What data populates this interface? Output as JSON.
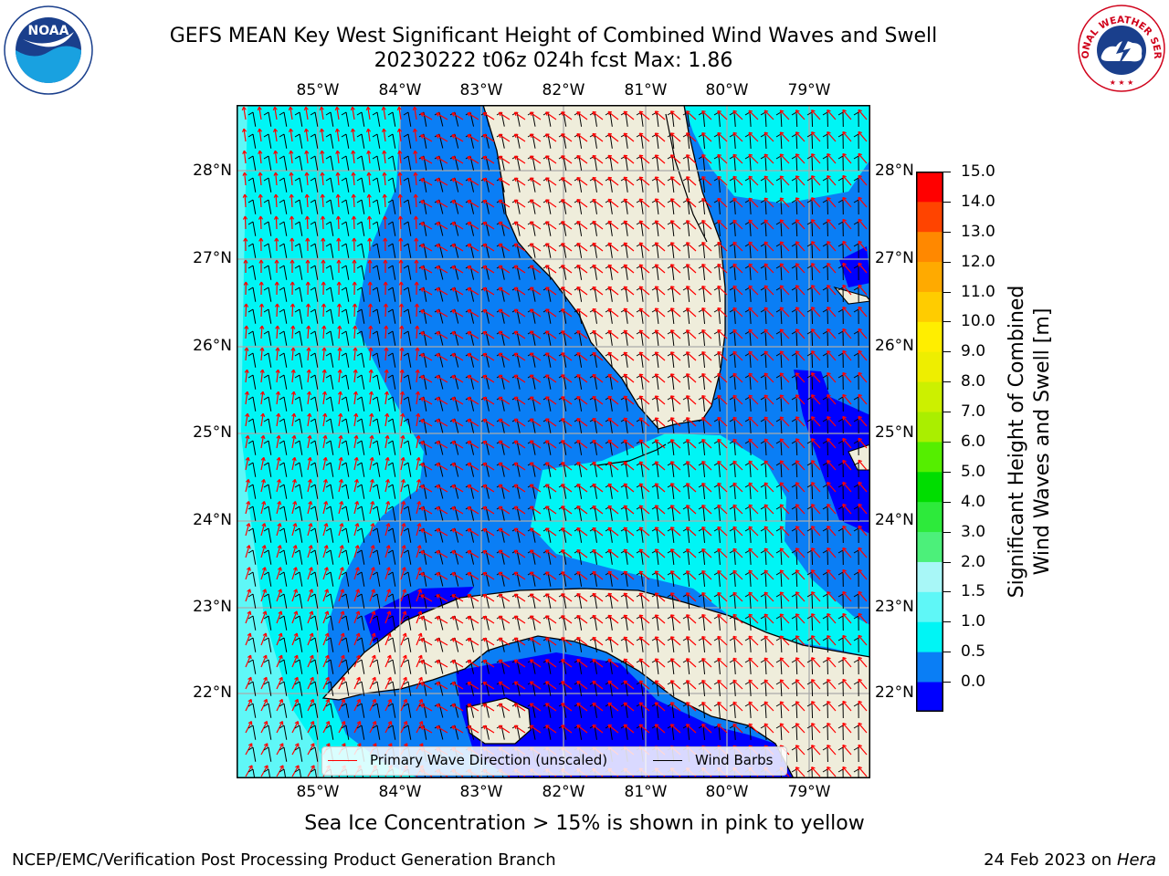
{
  "header": {
    "title_line1": "GEFS MEAN Key West Significant Height of Combined Wind Waves and Swell",
    "title_line2": "20230222 t06z 024h fcst   Max: 1.86"
  },
  "logos": {
    "noaa": "NOAA",
    "nws_text": "NATIONAL WEATHER SERVICE"
  },
  "map": {
    "lon_labels": [
      "85°W",
      "84°W",
      "83°W",
      "82°W",
      "81°W",
      "80°W",
      "79°W"
    ],
    "lat_labels": [
      "28°N",
      "27°N",
      "26°N",
      "25°N",
      "24°N",
      "23°N",
      "22°N"
    ],
    "colors": {
      "land": "#efeddb",
      "ocean_low": "#0000ff",
      "ocean_mid": "#0a7ef5",
      "ocean_high": "#00f5f5",
      "ocean_higher": "#5ff7f7",
      "grid": "#aaaaaa",
      "wave_arrow": "#ff0000",
      "wind_barb": "#000000"
    }
  },
  "legend": {
    "wave_label": "Primary Wave Direction (unscaled)",
    "wind_label": "Wind Barbs"
  },
  "colorbar": {
    "ticks": [
      "15.0",
      "14.0",
      "13.0",
      "12.0",
      "11.0",
      "10.0",
      "9.0",
      "8.0",
      "7.0",
      "6.0",
      "5.0",
      "4.0",
      "3.0",
      "2.0",
      "1.5",
      "1.0",
      "0.5",
      "0.0"
    ],
    "colors": [
      "#0000ff",
      "#0a7ef5",
      "#00f5f5",
      "#5ff7f7",
      "#a8f7f7",
      "#4cf07a",
      "#2dea3b",
      "#00dd00",
      "#55ee00",
      "#aaee00",
      "#ccf000",
      "#eeee00",
      "#ffee00",
      "#ffcc00",
      "#ffaa00",
      "#ff8800",
      "#ff4400",
      "#ff0000"
    ],
    "label_line1": "Significant Height of Combined",
    "label_line2": "Wind Waves and Swell [m]"
  },
  "notes": {
    "ice": "Sea Ice Concentration > 15% is shown in pink to yellow"
  },
  "footer": {
    "left": "NCEP/EMC/Verification Post Processing Product Generation Branch",
    "right_prefix": "24 Feb 2023 on ",
    "right_host": "Hera"
  }
}
